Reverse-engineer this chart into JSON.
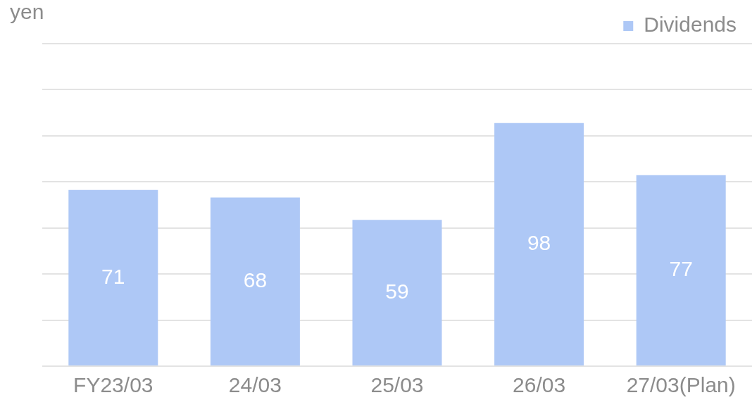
{
  "chart_data": {
    "type": "bar",
    "ylabel": "yen",
    "categories": [
      "FY23/03",
      "24/03",
      "25/03",
      "26/03",
      "27/03(Plan)"
    ],
    "series": [
      {
        "name": "Dividends",
        "color": "#aec8f6",
        "values": [
          71,
          68,
          59,
          98,
          77
        ]
      }
    ],
    "ylim": [
      0,
      130
    ],
    "yticks": [
      {
        "value": 0,
        "label": null
      },
      {
        "value": 18.57,
        "label": null
      },
      {
        "value": 37.14,
        "label": null
      },
      {
        "value": 55.71,
        "label": null
      },
      {
        "value": 74.29,
        "label": null
      },
      {
        "value": 92.86,
        "label": null
      },
      {
        "value": 111.43,
        "label": null
      },
      {
        "value": 130,
        "label": null
      }
    ],
    "grid": "y",
    "legend": "top right",
    "data_labels": true
  }
}
